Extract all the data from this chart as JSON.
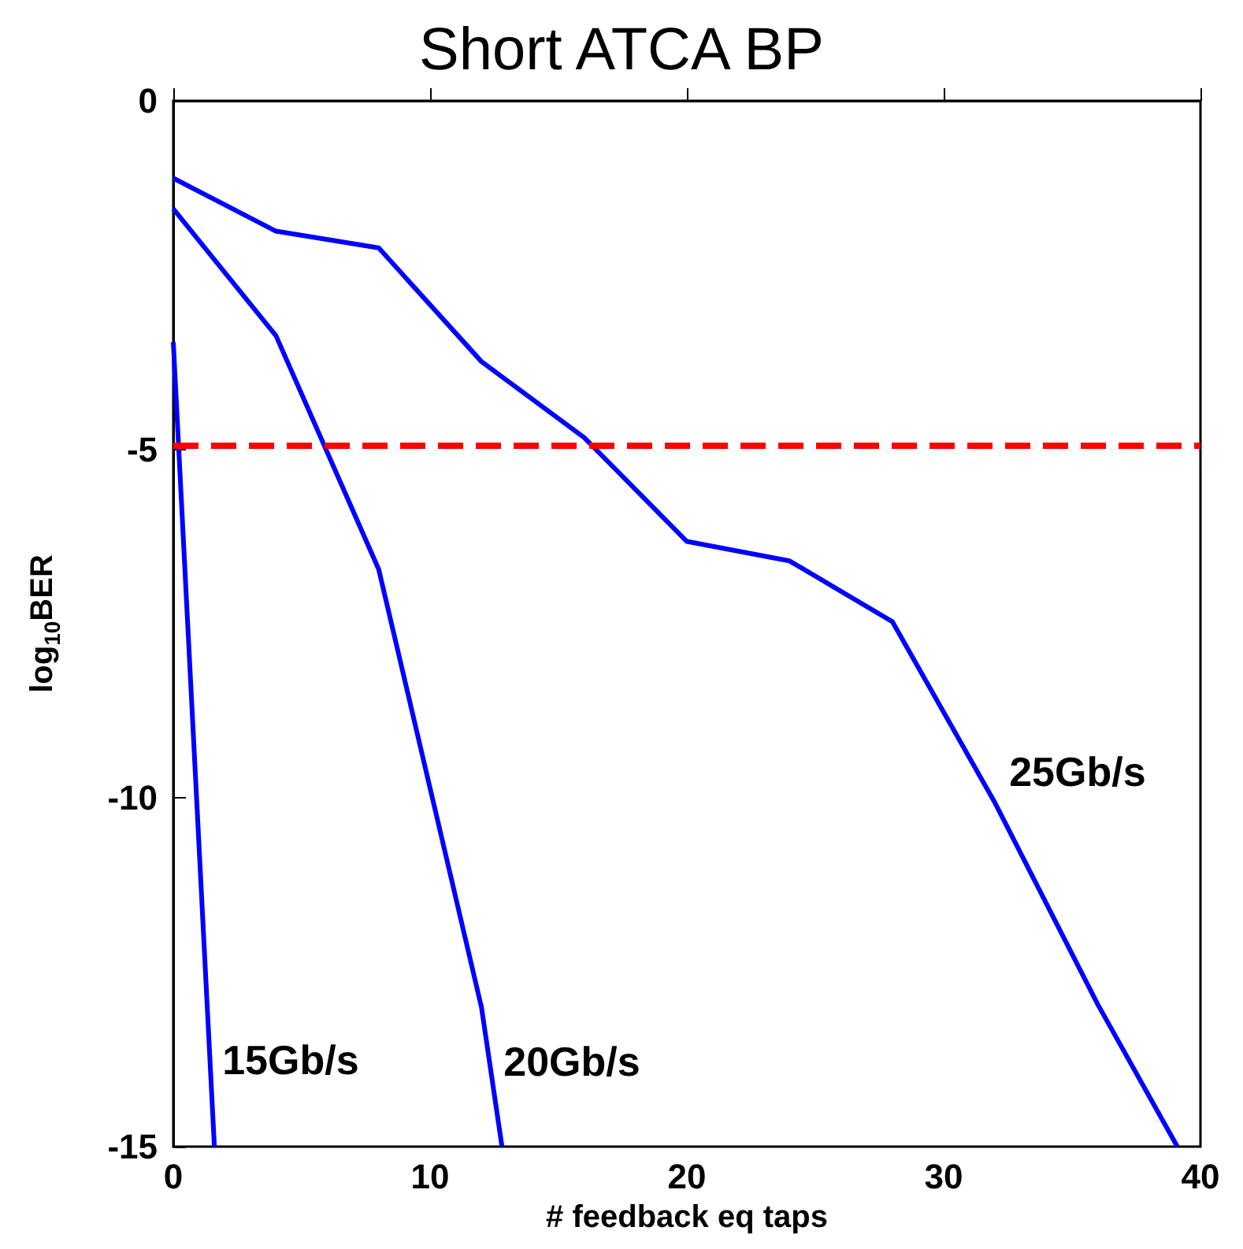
{
  "chart_data": {
    "type": "line",
    "title": "Short ATCA BP",
    "xlabel": "# feedback eq taps",
    "ylabel": "log$_{10}$BER",
    "xlim": [
      0,
      40
    ],
    "xticks": [
      0,
      10,
      20,
      30,
      40
    ],
    "ylim": [
      -15,
      0
    ],
    "yticks": [
      -15,
      -10,
      -5,
      0
    ],
    "grid": false,
    "legend": false,
    "marker": "none",
    "line_style": "solid",
    "series": [
      {
        "name": "15Gb/s",
        "color": "#0000ff",
        "x": [
          0,
          1.6
        ],
        "values": [
          -3.46,
          -15
        ]
      },
      {
        "name": "20Gb/s",
        "color": "#0000ff",
        "x": [
          0,
          4,
          8,
          12,
          12.8
        ],
        "values": [
          -1.55,
          -3.37,
          -6.72,
          -13.0,
          -15
        ]
      },
      {
        "name": "25Gb/s",
        "color": "#0000ff",
        "x": [
          0,
          4,
          8,
          12,
          16,
          20,
          24,
          28,
          32,
          36,
          39.1
        ],
        "values": [
          -1.11,
          -1.87,
          -2.11,
          -3.74,
          -4.83,
          -6.32,
          -6.6,
          -7.47,
          -10.07,
          -12.96,
          -15
        ]
      }
    ],
    "ref_lines": [
      {
        "axis": "y",
        "value": -4.95,
        "color": "#ff0000",
        "line_style": "dashed"
      }
    ]
  }
}
